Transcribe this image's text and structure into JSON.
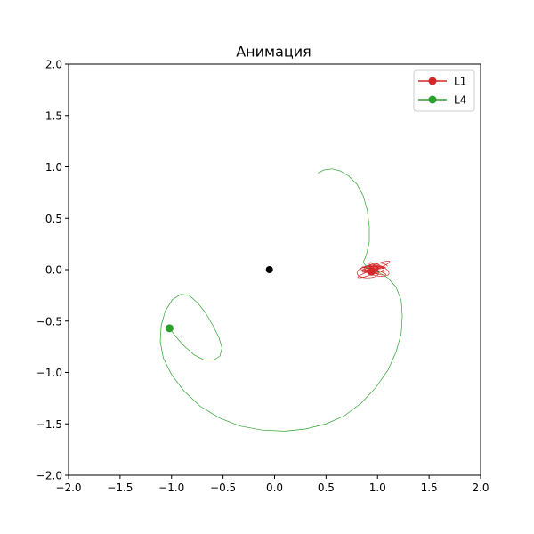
{
  "chart_data": {
    "type": "line",
    "title": "Анимация",
    "xlabel": "",
    "ylabel": "",
    "xlim": [
      -2.0,
      2.0
    ],
    "ylim": [
      -2.0,
      2.0
    ],
    "x_ticks": [
      -2.0,
      -1.5,
      -1.0,
      -0.5,
      0.0,
      0.5,
      1.0,
      1.5,
      2.0
    ],
    "y_ticks": [
      -2.0,
      -1.5,
      -1.0,
      -0.5,
      0.0,
      0.5,
      1.0,
      1.5,
      2.0
    ],
    "x_tick_labels": [
      "−2.0",
      "−1.5",
      "−1.0",
      "−0.5",
      "0.0",
      "0.5",
      "1.0",
      "1.5",
      "2.0"
    ],
    "y_tick_labels": [
      "−2.0",
      "−1.5",
      "−1.0",
      "−0.5",
      "0.0",
      "0.5",
      "1.0",
      "1.5",
      "2.0"
    ],
    "grid": false,
    "legend_position": "upper right",
    "center_point": {
      "x": -0.05,
      "y": 0.0,
      "color": "#000000"
    },
    "series": [
      {
        "name": "L1",
        "color": "#d62728",
        "marker": {
          "x": 0.94,
          "y": -0.02
        },
        "trajectory_kind": "tangle",
        "tangle_center": {
          "x": 0.96,
          "y": 0.0
        },
        "tangle_radius": {
          "x": 0.16,
          "y": 0.09
        }
      },
      {
        "name": "L4",
        "color": "#2ca02c",
        "marker": {
          "x": -1.02,
          "y": -0.57
        },
        "trajectory": [
          [
            0.42,
            0.94
          ],
          [
            0.48,
            0.97
          ],
          [
            0.56,
            0.98
          ],
          [
            0.64,
            0.96
          ],
          [
            0.72,
            0.91
          ],
          [
            0.8,
            0.83
          ],
          [
            0.86,
            0.72
          ],
          [
            0.9,
            0.58
          ],
          [
            0.92,
            0.42
          ],
          [
            0.92,
            0.27
          ],
          [
            0.89,
            0.14
          ],
          [
            0.86,
            0.07
          ],
          [
            0.9,
            0.02
          ],
          [
            1.0,
            -0.02
          ],
          [
            1.1,
            -0.08
          ],
          [
            1.18,
            -0.17
          ],
          [
            1.23,
            -0.3
          ],
          [
            1.24,
            -0.45
          ],
          [
            1.23,
            -0.62
          ],
          [
            1.18,
            -0.8
          ],
          [
            1.1,
            -0.98
          ],
          [
            0.98,
            -1.15
          ],
          [
            0.84,
            -1.3
          ],
          [
            0.68,
            -1.42
          ],
          [
            0.5,
            -1.5
          ],
          [
            0.3,
            -1.55
          ],
          [
            0.1,
            -1.57
          ],
          [
            -0.12,
            -1.56
          ],
          [
            -0.34,
            -1.52
          ],
          [
            -0.54,
            -1.44
          ],
          [
            -0.72,
            -1.33
          ],
          [
            -0.88,
            -1.18
          ],
          [
            -1.0,
            -1.02
          ],
          [
            -1.08,
            -0.86
          ],
          [
            -1.11,
            -0.7
          ],
          [
            -1.1,
            -0.54
          ],
          [
            -1.06,
            -0.4
          ],
          [
            -0.99,
            -0.29
          ],
          [
            -0.91,
            -0.24
          ],
          [
            -0.83,
            -0.25
          ],
          [
            -0.75,
            -0.32
          ],
          [
            -0.67,
            -0.42
          ],
          [
            -0.6,
            -0.54
          ],
          [
            -0.54,
            -0.66
          ],
          [
            -0.51,
            -0.76
          ],
          [
            -0.53,
            -0.84
          ],
          [
            -0.59,
            -0.88
          ],
          [
            -0.68,
            -0.88
          ],
          [
            -0.78,
            -0.83
          ],
          [
            -0.88,
            -0.74
          ],
          [
            -0.96,
            -0.65
          ],
          [
            -1.02,
            -0.57
          ]
        ]
      }
    ]
  }
}
